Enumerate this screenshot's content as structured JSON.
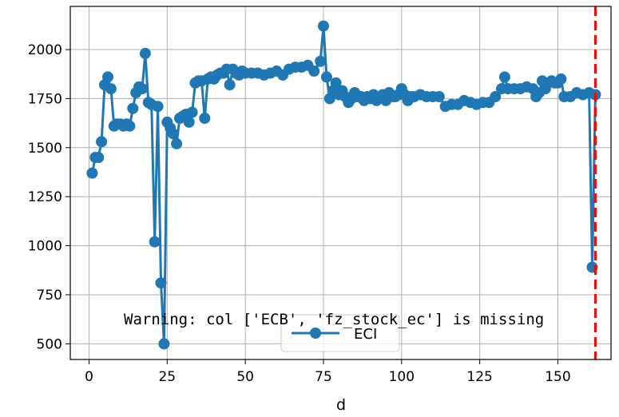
{
  "chart_data": {
    "type": "line",
    "xlabel": "d",
    "ylabel": "",
    "xlim": [
      -6,
      167
    ],
    "ylim": [
      420,
      2220
    ],
    "xticks": [
      0,
      25,
      50,
      75,
      100,
      125,
      150
    ],
    "yticks": [
      500,
      750,
      1000,
      1250,
      1500,
      1750,
      2000
    ],
    "grid": true,
    "legend_position": "bottom-center",
    "series": [
      {
        "name": "ECI",
        "color": "#1f77b4",
        "marker": "circle",
        "x": [
          1,
          2,
          3,
          4,
          5,
          6,
          7,
          8,
          9,
          10,
          11,
          12,
          13,
          14,
          15,
          16,
          17,
          18,
          19,
          20,
          21,
          22,
          23,
          24,
          25,
          26,
          27,
          28,
          29,
          30,
          31,
          32,
          33,
          34,
          35,
          36,
          37,
          38,
          39,
          40,
          41,
          42,
          43,
          44,
          45,
          46,
          47,
          48,
          49,
          50,
          52,
          54,
          56,
          58,
          60,
          62,
          64,
          66,
          68,
          70,
          72,
          74,
          75,
          76,
          77,
          78,
          79,
          80,
          81,
          82,
          83,
          84,
          85,
          86,
          87,
          88,
          89,
          90,
          91,
          92,
          93,
          94,
          95,
          96,
          97,
          98,
          99,
          100,
          101,
          102,
          103,
          104,
          106,
          108,
          110,
          112,
          114,
          116,
          118,
          120,
          122,
          124,
          126,
          128,
          130,
          132,
          133,
          134,
          136,
          138,
          140,
          142,
          143,
          144,
          145,
          146,
          147,
          148,
          149,
          150,
          151,
          152,
          154,
          156,
          158,
          160,
          161,
          162
        ],
        "y": [
          1370,
          1450,
          1450,
          1530,
          1820,
          1860,
          1800,
          1610,
          1620,
          1620,
          1610,
          1620,
          1610,
          1700,
          1780,
          1810,
          1800,
          1980,
          1730,
          1720,
          1020,
          1710,
          810,
          500,
          1630,
          1600,
          1570,
          1520,
          1650,
          1660,
          1670,
          1630,
          1680,
          1830,
          1840,
          1840,
          1650,
          1850,
          1860,
          1850,
          1870,
          1880,
          1880,
          1900,
          1820,
          1900,
          1880,
          1870,
          1890,
          1880,
          1880,
          1880,
          1870,
          1880,
          1890,
          1870,
          1900,
          1910,
          1910,
          1920,
          1890,
          1940,
          2120,
          1860,
          1750,
          1790,
          1830,
          1770,
          1790,
          1760,
          1730,
          1750,
          1780,
          1760,
          1760,
          1740,
          1760,
          1750,
          1770,
          1740,
          1760,
          1770,
          1740,
          1780,
          1760,
          1760,
          1770,
          1800,
          1770,
          1740,
          1760,
          1760,
          1770,
          1760,
          1760,
          1760,
          1710,
          1720,
          1720,
          1740,
          1730,
          1720,
          1730,
          1730,
          1760,
          1800,
          1860,
          1800,
          1800,
          1800,
          1810,
          1800,
          1760,
          1780,
          1840,
          1800,
          1830,
          1840,
          1830,
          1830,
          1850,
          1760,
          1760,
          1780,
          1770,
          1780,
          890,
          1770
        ]
      }
    ],
    "annotations": [
      {
        "type": "vline",
        "x": 162,
        "color": "#ff0000",
        "style": "dashed"
      },
      {
        "type": "text",
        "text": "Warning: col ['ECB', 'fz_stock_ec'] is missing"
      }
    ]
  }
}
